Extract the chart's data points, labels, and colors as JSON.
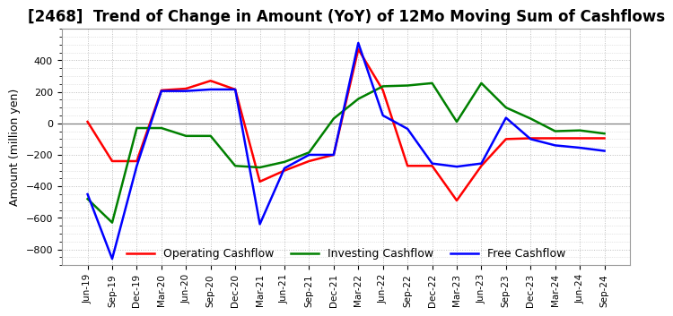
{
  "title": "[2468]  Trend of Change in Amount (YoY) of 12Mo Moving Sum of Cashflows",
  "ylabel": "Amount (million yen)",
  "x_labels": [
    "Jun-19",
    "Sep-19",
    "Dec-19",
    "Mar-20",
    "Jun-20",
    "Sep-20",
    "Dec-20",
    "Mar-21",
    "Jun-21",
    "Sep-21",
    "Dec-21",
    "Mar-22",
    "Jun-22",
    "Sep-22",
    "Dec-22",
    "Mar-23",
    "Jun-23",
    "Sep-23",
    "Dec-23",
    "Mar-24",
    "Jun-24",
    "Sep-24"
  ],
  "operating": [
    10,
    -240,
    -240,
    210,
    220,
    270,
    215,
    -370,
    -300,
    -240,
    -200,
    470,
    210,
    -270,
    -270,
    -490,
    -270,
    -100,
    -95,
    -95,
    -95,
    -95
  ],
  "investing": [
    -480,
    -630,
    -30,
    -30,
    -80,
    -80,
    -270,
    -280,
    -245,
    -185,
    30,
    155,
    235,
    240,
    255,
    10,
    255,
    100,
    30,
    -50,
    -45,
    -65
  ],
  "free": [
    -450,
    -860,
    -270,
    205,
    205,
    215,
    215,
    -640,
    -285,
    -200,
    -200,
    510,
    50,
    -35,
    -255,
    -275,
    -255,
    35,
    -100,
    -140,
    -155,
    -175
  ],
  "line_colors": {
    "operating": "#FF0000",
    "investing": "#008000",
    "free": "#0000FF"
  },
  "ylim": [
    -900,
    600
  ],
  "yticks": [
    -800,
    -600,
    -400,
    -200,
    0,
    200,
    400
  ],
  "background_color": "#FFFFFF",
  "grid_color": "#AAAAAA",
  "title_fontsize": 12,
  "legend_labels": [
    "Operating Cashflow",
    "Investing Cashflow",
    "Free Cashflow"
  ]
}
